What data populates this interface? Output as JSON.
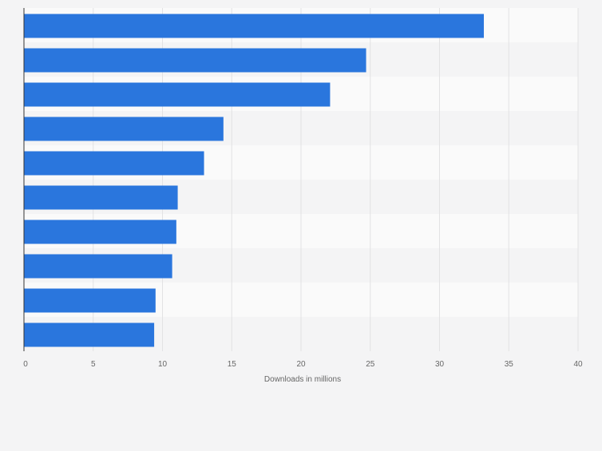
{
  "chart_data": {
    "type": "bar",
    "orientation": "horizontal",
    "categories": [
      "",
      "",
      "",
      "",
      "",
      "",
      "",
      "",
      "",
      ""
    ],
    "values": [
      33.2,
      24.7,
      22.1,
      14.4,
      13.0,
      11.1,
      11.0,
      10.7,
      9.5,
      9.4
    ],
    "xlabel": "Downloads in millions",
    "xlim": [
      0,
      40
    ],
    "xticks": [
      "0",
      "5",
      "10",
      "15",
      "20",
      "25",
      "30",
      "35",
      "40"
    ],
    "grid": true,
    "colors": {
      "bar": "#2a76dd",
      "background": "#f4f4f5",
      "band_light": "#fafafa",
      "band_dark": "#f4f4f5",
      "gridline": "#e2e2e4",
      "axis": "#333333",
      "tick_text": "#666666"
    }
  }
}
